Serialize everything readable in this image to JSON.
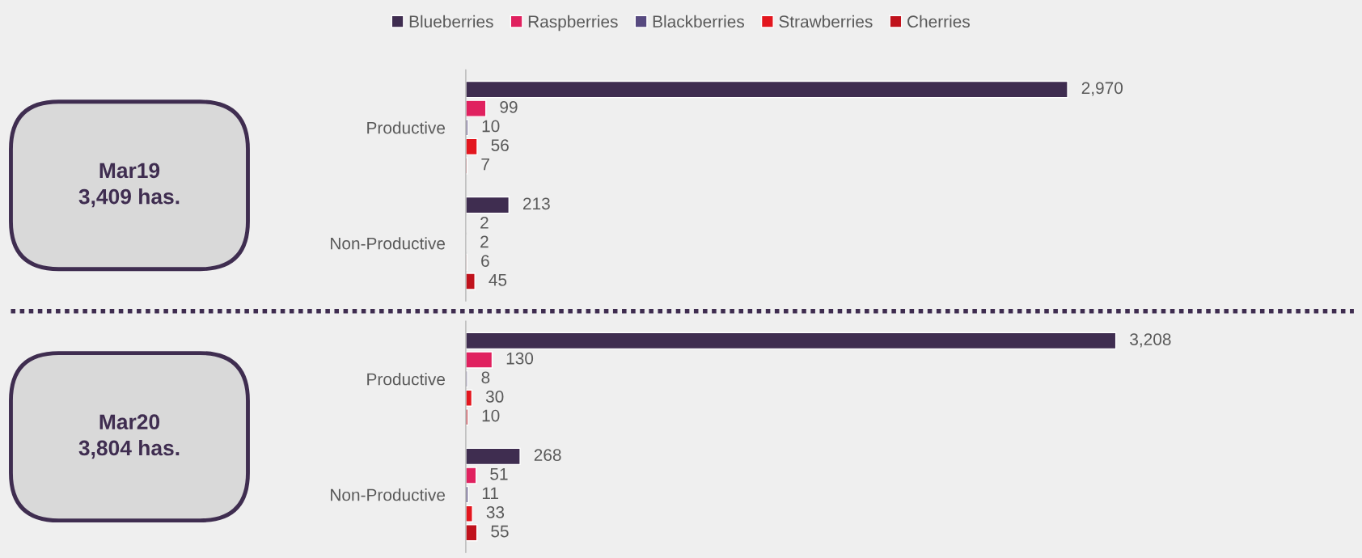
{
  "chart_data": [
    {
      "type": "bar",
      "orientation": "horizontal",
      "categories": [
        "Productive",
        "Non-Productive"
      ],
      "tick_labels": "y",
      "legend": "top",
      "annotations": [
        "Mar19\n3,409 has."
      ],
      "series": [
        {
          "name": "Blueberries",
          "color": "#3f2d50",
          "values": [
            2970,
            213
          ],
          "value_labels": [
            "2,970",
            "213"
          ]
        },
        {
          "name": "Raspberries",
          "color": "#e0215f",
          "values": [
            99,
            2
          ],
          "value_labels": [
            "99",
            "2"
          ]
        },
        {
          "name": "Blackberries",
          "color": "#574a80",
          "values": [
            10,
            2
          ],
          "value_labels": [
            "10",
            "2"
          ]
        },
        {
          "name": "Strawberries",
          "color": "#e3161e",
          "values": [
            56,
            6
          ],
          "value_labels": [
            "56",
            "6"
          ]
        },
        {
          "name": "Cherries",
          "color": "#c0121c",
          "values": [
            7,
            45
          ],
          "value_labels": [
            "7",
            "45"
          ]
        }
      ]
    },
    {
      "type": "bar",
      "orientation": "horizontal",
      "categories": [
        "Productive",
        "Non-Productive"
      ],
      "tick_labels": "y",
      "annotations": [
        "Mar20\n3,804 has."
      ],
      "series": [
        {
          "color": "#3f2d50",
          "values": [
            3208,
            268
          ],
          "value_labels": [
            "3,208",
            "268"
          ]
        },
        {
          "color": "#e0215f",
          "values": [
            130,
            51
          ],
          "value_labels": [
            "130",
            "51"
          ]
        },
        {
          "color": "#574a80",
          "values": [
            8,
            11
          ],
          "value_labels": [
            "8",
            "11"
          ]
        },
        {
          "color": "#e3161e",
          "values": [
            30,
            33
          ],
          "value_labels": [
            "30",
            "33"
          ]
        },
        {
          "color": "#c0121c",
          "values": [
            10,
            55
          ],
          "value_labels": [
            "10",
            "55"
          ]
        }
      ]
    }
  ]
}
